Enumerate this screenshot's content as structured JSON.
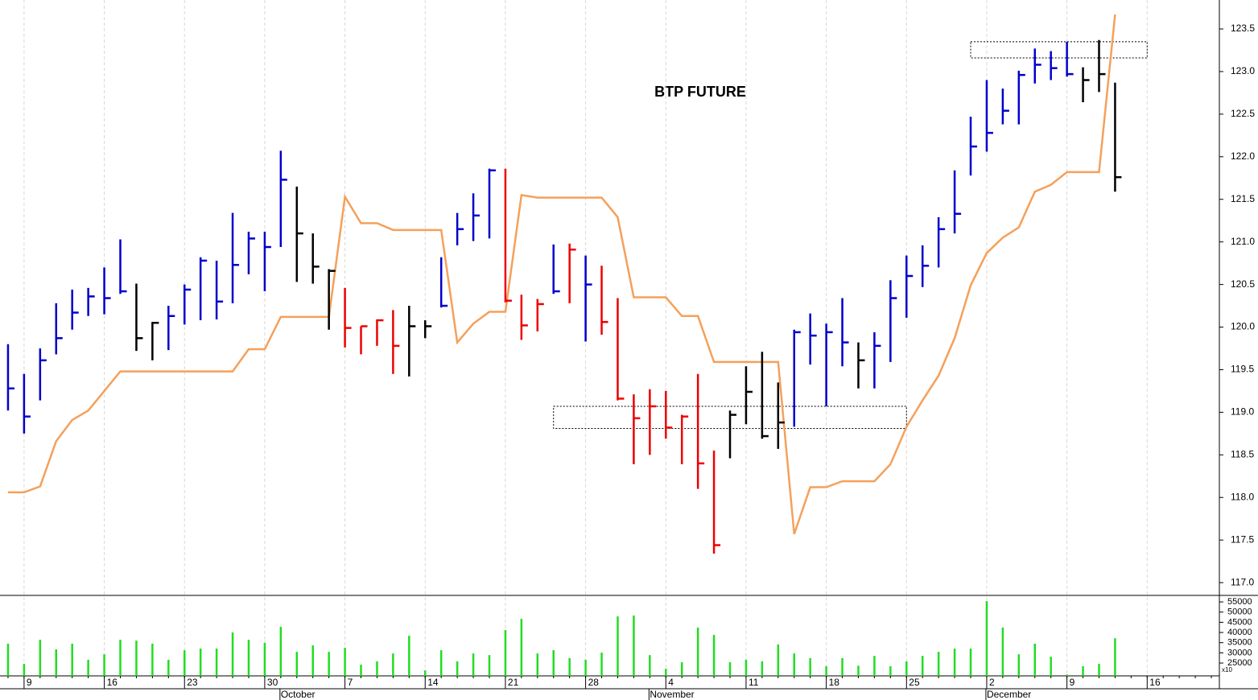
{
  "chart_data": {
    "type": "ohlc",
    "title": "BTP FUTURE",
    "high": [
      119.8,
      119.45,
      119.75,
      120.28,
      120.44,
      120.46,
      120.7,
      121.03,
      120.51,
      120.06,
      120.25,
      120.5,
      120.82,
      120.78,
      121.34,
      121.12,
      121.12,
      122.07,
      121.65,
      121.1,
      120.68,
      120.46,
      120.01,
      120.09,
      120.2,
      120.25,
      120.08,
      120.82,
      121.34,
      121.57,
      121.86,
      121.86,
      120.38,
      120.33,
      120.97,
      120.98,
      120.84,
      120.72,
      120.34,
      119.21,
      119.27,
      119.25,
      118.97,
      119.45,
      118.55,
      119.02,
      119.54,
      119.71,
      119.35,
      119.97,
      120.16,
      120.04,
      120.34,
      119.82,
      119.94,
      120.55,
      120.84,
      120.96,
      121.29,
      121.84,
      122.47,
      122.9,
      122.8,
      123.01,
      123.27,
      123.24,
      123.35,
      123.05,
      123.37,
      122.87
    ],
    "low": [
      119.02,
      118.75,
      119.14,
      119.68,
      119.97,
      120.13,
      120.15,
      120.39,
      119.72,
      119.61,
      119.73,
      120.03,
      120.08,
      120.09,
      120.28,
      120.62,
      120.42,
      120.94,
      120.53,
      120.51,
      119.97,
      119.76,
      119.68,
      119.78,
      119.45,
      119.42,
      119.87,
      120.23,
      120.96,
      121.01,
      121.04,
      120.29,
      119.85,
      119.95,
      120.39,
      120.28,
      119.83,
      119.91,
      119.14,
      118.39,
      118.5,
      118.69,
      118.39,
      118.1,
      117.34,
      118.46,
      118.86,
      118.69,
      118.57,
      118.83,
      119.56,
      119.07,
      119.54,
      119.28,
      119.28,
      119.59,
      120.11,
      120.47,
      120.7,
      121.1,
      121.78,
      122.06,
      122.38,
      122.38,
      122.86,
      122.9,
      122.94,
      122.64,
      122.76,
      121.59
    ],
    "close": [
      119.28,
      118.95,
      119.61,
      119.87,
      120.17,
      120.36,
      120.34,
      120.42,
      119.87,
      120.05,
      120.13,
      120.44,
      120.78,
      120.3,
      120.73,
      121.04,
      120.94,
      121.73,
      121.1,
      120.71,
      120.66,
      119.99,
      120.01,
      120.08,
      119.78,
      120.01,
      120.01,
      120.25,
      121.15,
      121.31,
      121.84,
      120.31,
      120.02,
      120.27,
      120.42,
      120.91,
      120.5,
      120.06,
      119.16,
      118.93,
      119.07,
      118.82,
      118.95,
      118.4,
      117.44,
      118.97,
      119.24,
      118.72,
      118.88,
      119.94,
      119.9,
      119.94,
      119.82,
      119.61,
      119.78,
      120.34,
      120.6,
      120.72,
      121.15,
      121.33,
      122.12,
      122.28,
      122.54,
      122.96,
      123.08,
      123.04,
      122.97,
      122.9,
      122.97,
      121.76
    ],
    "colors": [
      "#0000cc",
      "#0000cc",
      "#0000cc",
      "#0000cc",
      "#0000cc",
      "#0000cc",
      "#0000cc",
      "#0000cc",
      "#000000",
      "#000000",
      "#0000cc",
      "#0000cc",
      "#0000cc",
      "#0000cc",
      "#0000cc",
      "#0000cc",
      "#0000cc",
      "#0000cc",
      "#000000",
      "#000000",
      "#000000",
      "#ee0000",
      "#ee0000",
      "#ee0000",
      "#ee0000",
      "#000000",
      "#000000",
      "#0000cc",
      "#0000cc",
      "#0000cc",
      "#0000cc",
      "#ee0000",
      "#ee0000",
      "#ee0000",
      "#0000cc",
      "#ee0000",
      "#0000cc",
      "#ee0000",
      "#ee0000",
      "#ee0000",
      "#ee0000",
      "#ee0000",
      "#ee0000",
      "#ee0000",
      "#ee0000",
      "#000000",
      "#000000",
      "#000000",
      "#000000",
      "#0000cc",
      "#0000cc",
      "#0000cc",
      "#0000cc",
      "#000000",
      "#0000cc",
      "#0000cc",
      "#0000cc",
      "#0000cc",
      "#0000cc",
      "#0000cc",
      "#0000cc",
      "#0000cc",
      "#0000cc",
      "#0000cc",
      "#0000cc",
      "#0000cc",
      "#0000cc",
      "#000000",
      "#000000",
      "#000000"
    ],
    "stop_line": {
      "color": "#f5a05a",
      "values": [
        118.06,
        118.06,
        118.13,
        118.66,
        118.91,
        119.02,
        119.25,
        119.48,
        119.48,
        119.48,
        119.48,
        119.48,
        119.48,
        119.48,
        119.48,
        119.74,
        119.74,
        120.12,
        120.12,
        120.12,
        120.12,
        121.53,
        121.22,
        121.22,
        121.14,
        121.14,
        121.14,
        121.14,
        119.82,
        120.04,
        120.18,
        120.18,
        121.55,
        121.52,
        121.52,
        121.52,
        121.52,
        121.52,
        121.29,
        120.35,
        120.35,
        120.35,
        120.13,
        120.13,
        119.59,
        119.59,
        119.59,
        119.59,
        119.59,
        117.57,
        118.12,
        118.12,
        118.19,
        118.19,
        118.19,
        118.39,
        118.83,
        119.14,
        119.43,
        119.87,
        120.49,
        120.87,
        121.05,
        121.17,
        121.59,
        121.67,
        121.82,
        121.82,
        121.82,
        123.67
      ]
    },
    "volume": [
      34500,
      24600,
      36400,
      31700,
      34500,
      26600,
      29300,
      36400,
      36000,
      34500,
      26600,
      31300,
      32100,
      32100,
      40000,
      36400,
      34900,
      42800,
      30500,
      33700,
      30500,
      32500,
      24200,
      25800,
      29700,
      38400,
      21400,
      31300,
      25800,
      29700,
      28900,
      41200,
      46700,
      29700,
      31300,
      27400,
      26600,
      30100,
      47900,
      48300,
      28900,
      22200,
      25400,
      42400,
      38800,
      25400,
      26600,
      25800,
      34100,
      29700,
      27400,
      23400,
      27400,
      23700,
      28500,
      23400,
      25800,
      28500,
      30500,
      32100,
      32100,
      55400,
      42400,
      29300,
      34500,
      28100,
      19400,
      23400,
      24600,
      37200
    ],
    "volume_color": "#22dd22",
    "boxes": [
      {
        "x": [
          34,
          56
        ],
        "y": [
          118.81,
          119.07
        ]
      },
      {
        "x": [
          60,
          71
        ],
        "y": [
          123.16,
          123.35
        ]
      }
    ],
    "xlim": [
      -0.5,
      75.5
    ],
    "ylim": [
      116.85,
      123.84
    ],
    "yticks": [
      {
        "value": 117,
        "label": "117.0"
      },
      117.5,
      {
        "value": 118,
        "label": "118.0"
      },
      118.5,
      {
        "value": 119,
        "label": "119.0"
      },
      119.5,
      {
        "value": 120,
        "label": "120.0"
      },
      120.5,
      {
        "value": 121,
        "label": "121.0"
      },
      121.5,
      {
        "value": 122,
        "label": "122.0"
      },
      122.5,
      {
        "value": 123,
        "label": "123.0"
      },
      123.5
    ],
    "volume_ylim": [
      18700,
      57800
    ],
    "volume_yticks": [
      25000,
      30000,
      35000,
      40000,
      45000,
      50000,
      55000
    ],
    "volume_unit": "x10",
    "xticks": [
      {
        "value": 1,
        "label": "9"
      },
      {
        "value": 6,
        "label": "16"
      },
      {
        "value": 11,
        "label": "23"
      },
      {
        "value": 16,
        "label": "30"
      },
      {
        "value": 21,
        "label": "7"
      },
      {
        "value": 26,
        "label": "14"
      },
      {
        "value": 31,
        "label": "21"
      },
      {
        "value": 36,
        "label": "28"
      },
      {
        "value": 41,
        "label": "4"
      },
      {
        "value": 46,
        "label": "11"
      },
      {
        "value": 51,
        "label": "18"
      },
      {
        "value": 56,
        "label": "25"
      },
      {
        "value": 61,
        "label": "2"
      },
      {
        "value": 66,
        "label": "9"
      },
      {
        "value": 71,
        "label": "16"
      }
    ],
    "month_labels": [
      {
        "value": 17,
        "label": "October"
      },
      {
        "value": 40,
        "label": "November"
      },
      {
        "value": 61,
        "label": "December"
      }
    ],
    "grid": true
  }
}
